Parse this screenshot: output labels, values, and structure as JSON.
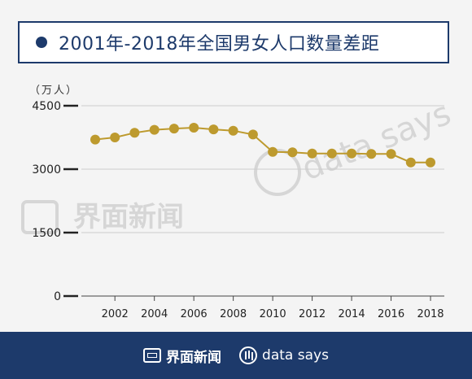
{
  "title": "2001年-2018年全国男女人口数量差距",
  "unit_label": "（万人）",
  "watermark": {
    "brand_cn": "界面新闻",
    "brand_en": "data says"
  },
  "footer": {
    "brand_cn": "界面新闻",
    "brand_en": "data says"
  },
  "colors": {
    "line": "#bd9a2e",
    "title_border": "#1d3a6b",
    "footer_bg": "#1d3a6b",
    "grid": "#cccccc"
  },
  "chart_data": {
    "type": "line",
    "x": [
      2001,
      2002,
      2003,
      2004,
      2005,
      2006,
      2007,
      2008,
      2009,
      2010,
      2011,
      2012,
      2013,
      2014,
      2015,
      2016,
      2017,
      2018
    ],
    "series": [
      {
        "values": [
          3700,
          3750,
          3860,
          3930,
          3960,
          3980,
          3940,
          3910,
          3820,
          3410,
          3400,
          3370,
          3370,
          3370,
          3360,
          3360,
          3160,
          3160
        ]
      }
    ],
    "xticks": [
      2002,
      2004,
      2006,
      2008,
      2010,
      2012,
      2014,
      2016,
      2018
    ],
    "yticks": [
      0,
      1500,
      3000,
      4500
    ],
    "ylim": [
      0,
      4500
    ],
    "grid": true
  }
}
